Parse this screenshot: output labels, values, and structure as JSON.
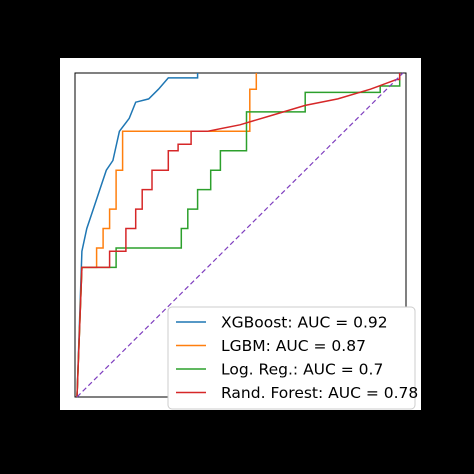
{
  "chart_data": {
    "type": "line",
    "title": "",
    "xlabel": "",
    "ylabel": "",
    "xlim": [
      0,
      1
    ],
    "ylim": [
      0,
      1
    ],
    "grid": false,
    "legend_position": "lower-right",
    "figure_background": "#000000",
    "axes_background": "#ffffff",
    "series": [
      {
        "name": "XGBoost: AUC = 0.92",
        "color": "#1f77b4",
        "x": [
          0,
          0.015,
          0.015,
          0.03,
          0.03,
          0.05,
          0.05,
          0.07,
          0.07,
          0.09,
          0.09,
          0.11,
          0.11,
          0.13,
          0.13,
          0.16,
          0.16,
          0.18,
          0.18,
          0.22,
          0.22,
          0.25,
          0.25,
          0.28,
          0.28,
          0.37,
          0.37
        ],
        "y": [
          0,
          0.45,
          0.45,
          0.52,
          0.52,
          0.58,
          0.58,
          0.64,
          0.64,
          0.7,
          0.7,
          0.73,
          0.73,
          0.82,
          0.82,
          0.86,
          0.86,
          0.91,
          0.91,
          0.92,
          0.92,
          0.95,
          0.95,
          0.985,
          0.985,
          0.985,
          1.0
        ]
      },
      {
        "name": "LGBM: AUC = 0.87",
        "color": "#ff7f0e",
        "x": [
          0,
          0.015,
          0.015,
          0.06,
          0.06,
          0.08,
          0.08,
          0.1,
          0.1,
          0.12,
          0.12,
          0.14,
          0.14,
          0.19,
          0.19,
          0.53,
          0.53,
          0.55,
          0.55
        ],
        "y": [
          0,
          0.4,
          0.4,
          0.4,
          0.46,
          0.46,
          0.52,
          0.52,
          0.58,
          0.58,
          0.7,
          0.7,
          0.82,
          0.82,
          0.82,
          0.82,
          0.95,
          0.95,
          1.0
        ]
      },
      {
        "name": "Log. Reg.: AUC = 0.7",
        "color": "#2ca02c",
        "x": [
          0,
          0.015,
          0.015,
          0.12,
          0.12,
          0.32,
          0.32,
          0.34,
          0.34,
          0.37,
          0.37,
          0.41,
          0.41,
          0.44,
          0.44,
          0.52,
          0.52,
          0.7,
          0.7,
          0.93,
          0.93,
          0.99,
          0.99
        ],
        "y": [
          0,
          0.4,
          0.4,
          0.4,
          0.46,
          0.46,
          0.52,
          0.52,
          0.58,
          0.58,
          0.64,
          0.64,
          0.7,
          0.7,
          0.76,
          0.76,
          0.88,
          0.88,
          0.94,
          0.94,
          0.96,
          0.96,
          1.0
        ]
      },
      {
        "name": "Rand. Forest: AUC = 0.78",
        "color": "#d62728",
        "x": [
          0,
          0.015,
          0.015,
          0.1,
          0.1,
          0.15,
          0.15,
          0.18,
          0.18,
          0.2,
          0.2,
          0.23,
          0.23,
          0.28,
          0.28,
          0.31,
          0.31,
          0.35,
          0.35,
          0.4,
          0.5,
          0.6,
          0.7,
          0.8,
          0.9,
          0.98,
          0.99,
          0.99
        ],
        "y": [
          0,
          0.4,
          0.4,
          0.4,
          0.45,
          0.45,
          0.52,
          0.52,
          0.58,
          0.58,
          0.64,
          0.64,
          0.7,
          0.7,
          0.76,
          0.76,
          0.78,
          0.78,
          0.82,
          0.82,
          0.84,
          0.87,
          0.9,
          0.92,
          0.95,
          0.98,
          0.98,
          1.0
        ]
      }
    ],
    "reference_line": {
      "x": [
        0,
        1
      ],
      "y": [
        0,
        1
      ],
      "color": "#7f3fbf",
      "style": "dashed"
    }
  }
}
